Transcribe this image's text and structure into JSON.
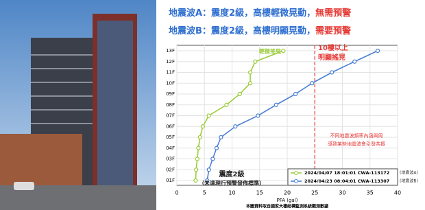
{
  "headline": [
    {
      "text": "地震波A：震度2級，高樓輕微晃動，",
      "alert": "無需預警"
    },
    {
      "text": "地震波B：震度2級，高樓明顯晃動，",
      "alert": "需要預警"
    }
  ],
  "chart_data": {
    "type": "line",
    "categories": [
      "01F",
      "02F",
      "03F",
      "04F",
      "05F",
      "06F",
      "07F",
      "08F",
      "09F",
      "10F",
      "11F",
      "12F",
      "13F"
    ],
    "series": [
      {
        "name": "2024/04/07 18:01:01 CWA-113172",
        "note": "(地震波A)",
        "color": "#9ccc3c",
        "values": [
          3.4,
          3.5,
          3.7,
          3.9,
          4.2,
          4.7,
          5.8,
          9,
          11.4,
          13.3,
          13.3,
          14.2,
          19.3
        ]
      },
      {
        "name": "2024/04/23 08:04:01 CWA-113307",
        "note": "(地震波B)",
        "color": "#4a7fd4",
        "values": [
          5.5,
          5.8,
          6.5,
          7.2,
          8,
          10.6,
          14.7,
          18,
          21.5,
          24.5,
          28.1,
          32.2,
          36.4
        ]
      }
    ],
    "xlim": [
      0,
      40
    ],
    "xticks": [
      0,
      5,
      10,
      15,
      20,
      25,
      30,
      35,
      40
    ],
    "xlabel": "PFA (gal)",
    "grid": true,
    "threshold": {
      "value": 25,
      "color": "#e53935"
    },
    "annotations": {
      "green": "輕微搖晃",
      "red": [
        "10樓以上",
        "明顯搖晃"
      ],
      "note": [
        "不同地震波頻率內涵與周",
        "導致某些地震波會引發共振"
      ],
      "level": [
        "震度2級",
        "（未達現行預警發佈標準）"
      ]
    },
    "source": "本圖資料取自國家大樓結構監測系統觀測數據"
  }
}
